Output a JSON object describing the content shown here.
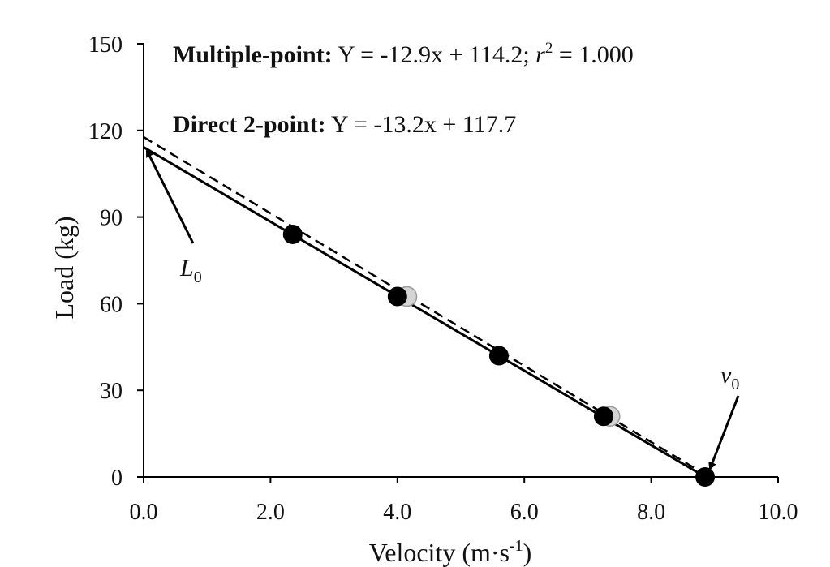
{
  "chart_data": {
    "type": "scatter",
    "xlabel": "Velocity (m·s",
    "xlabel_sup": "-1",
    "xlabel_close": ")",
    "ylabel": "Load (kg)",
    "xlim": [
      0,
      10
    ],
    "ylim": [
      0,
      150
    ],
    "x_ticks": [
      "0.0",
      "2.0",
      "4.0",
      "6.0",
      "8.0",
      "10.0"
    ],
    "y_ticks": [
      "0",
      "30",
      "60",
      "90",
      "120",
      "150"
    ],
    "grid": false,
    "series": [
      {
        "style": "filled-black",
        "points": [
          {
            "x": 2.35,
            "y": 84
          },
          {
            "x": 4.0,
            "y": 62.5
          },
          {
            "x": 5.6,
            "y": 42
          },
          {
            "x": 7.25,
            "y": 21
          },
          {
            "x": 8.85,
            "y": 0
          }
        ]
      },
      {
        "style": "light-gray",
        "points": [
          {
            "x": 4.15,
            "y": 62.5
          },
          {
            "x": 7.35,
            "y": 21
          }
        ]
      }
    ],
    "fits": [
      {
        "style": "solid",
        "slope": -12.9,
        "intercept": 114.2,
        "x_range": [
          0,
          8.85
        ]
      },
      {
        "style": "dashed",
        "slope": -13.2,
        "intercept": 117.7,
        "x_range": [
          0,
          8.9
        ]
      }
    ],
    "equations": [
      {
        "label": "Multiple-point:",
        "pre": " Y = -12.9x + 114.2; ",
        "r": "r",
        "sup": "2",
        "post": " = 1.000"
      },
      {
        "label": "Direct 2-point:",
        "text": " Y = -13.2x + 117.7"
      }
    ],
    "annotations": [
      {
        "symbol": "L",
        "sub": "0",
        "points_to": {
          "x": 0.0,
          "y": 114.2
        }
      },
      {
        "symbol": "v",
        "sub": "0",
        "points_to": {
          "x": 8.85,
          "y": 0
        }
      }
    ]
  }
}
